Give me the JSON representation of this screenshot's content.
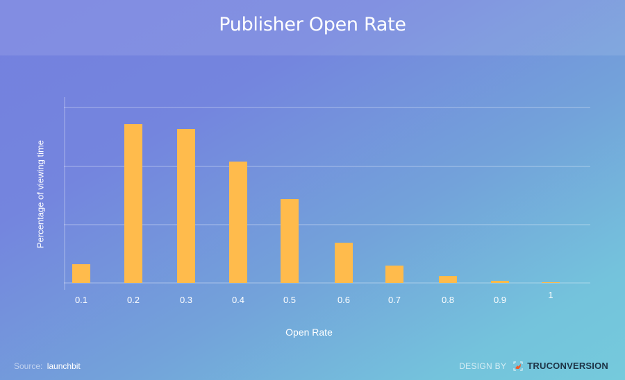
{
  "header": {
    "title": "Publisher Open Rate"
  },
  "axes": {
    "ylabel": "Percentage of viewing time",
    "xlabel": "Open Rate"
  },
  "colors": {
    "bar": "#ffbb4c",
    "background_start": "#7480df",
    "background_end": "#75cadc",
    "brand_text": "#1d3345",
    "logo_accent": "#f05a28"
  },
  "footer": {
    "source_label": "Source:",
    "source_value": "launchbit",
    "design_by": "DESIGN BY",
    "brand": "TRUCONVERSION"
  },
  "chart_data": {
    "type": "bar",
    "title": "Publisher Open Rate",
    "xlabel": "Open Rate",
    "ylabel": "Percentage of viewing time",
    "categories": [
      "0.1",
      "0.2",
      "0.3",
      "0.4",
      "0.5",
      "0.6",
      "0.7",
      "0.8",
      "0.9",
      "1"
    ],
    "values": [
      0.32,
      2.72,
      2.63,
      2.08,
      1.44,
      0.69,
      0.3,
      0.12,
      0.04,
      0.01
    ],
    "value_units": "gridline units (no y tick labels shown; 4 gridlines at 0,1,2,3)",
    "ylim": [
      0,
      3
    ],
    "grid": true,
    "legend": null
  }
}
